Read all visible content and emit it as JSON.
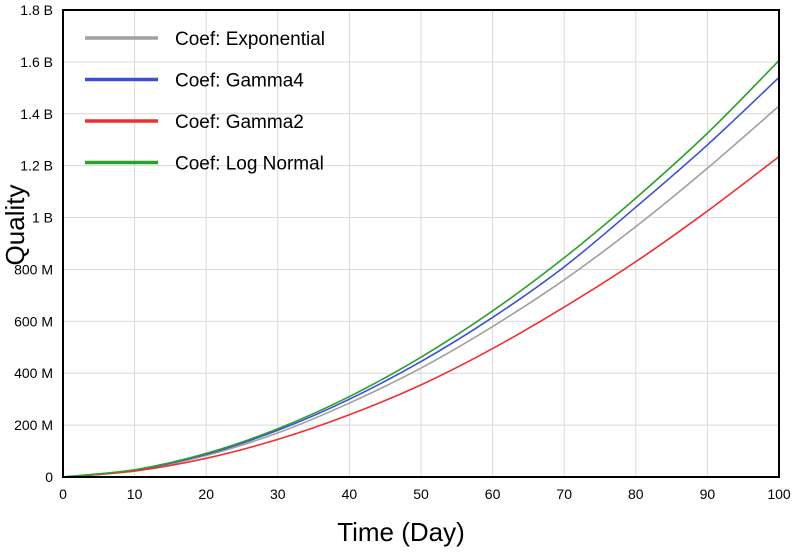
{
  "chart_data": {
    "type": "line",
    "title": "",
    "xlabel": "Time (Day)",
    "ylabel": "Quality",
    "xlim": [
      0,
      100
    ],
    "ylim": [
      0,
      1800000000
    ],
    "grid": true,
    "legend_position": "top-left",
    "x_ticks": [
      0,
      10,
      20,
      30,
      40,
      50,
      60,
      70,
      80,
      90,
      100
    ],
    "x_tick_labels": [
      "0",
      "10",
      "20",
      "30",
      "40",
      "50",
      "60",
      "70",
      "80",
      "90",
      "100"
    ],
    "y_ticks": [
      0,
      200000000,
      400000000,
      600000000,
      800000000,
      1000000000,
      1200000000,
      1400000000,
      1600000000,
      1800000000
    ],
    "y_tick_labels": [
      "0",
      "200 M",
      "400 M",
      "600 M",
      "800 M",
      "1 B",
      "1.2 B",
      "1.4 B",
      "1.6 B",
      "1.8 B"
    ],
    "x": [
      0,
      10,
      20,
      30,
      40,
      50,
      60,
      70,
      80,
      90,
      100
    ],
    "series": [
      {
        "name": "Coef: Exponential",
        "color": "#a0a0a0",
        "values": [
          0,
          25000000,
          83000000,
          170000000,
          285000000,
          420000000,
          580000000,
          760000000,
          965000000,
          1190000000,
          1430000000
        ]
      },
      {
        "name": "Coef: Gamma4",
        "color": "#3b4fd8",
        "values": [
          0,
          27000000,
          88000000,
          180000000,
          300000000,
          445000000,
          615000000,
          810000000,
          1040000000,
          1280000000,
          1540000000
        ]
      },
      {
        "name": "Coef: Gamma2",
        "color": "#f03030",
        "values": [
          0,
          23000000,
          72000000,
          145000000,
          240000000,
          355000000,
          495000000,
          655000000,
          830000000,
          1025000000,
          1235000000
        ]
      },
      {
        "name": "Coef: Log Normal",
        "color": "#2ca02c",
        "values": [
          0,
          28000000,
          91000000,
          186000000,
          310000000,
          462000000,
          640000000,
          845000000,
          1075000000,
          1325000000,
          1605000000
        ]
      }
    ]
  }
}
